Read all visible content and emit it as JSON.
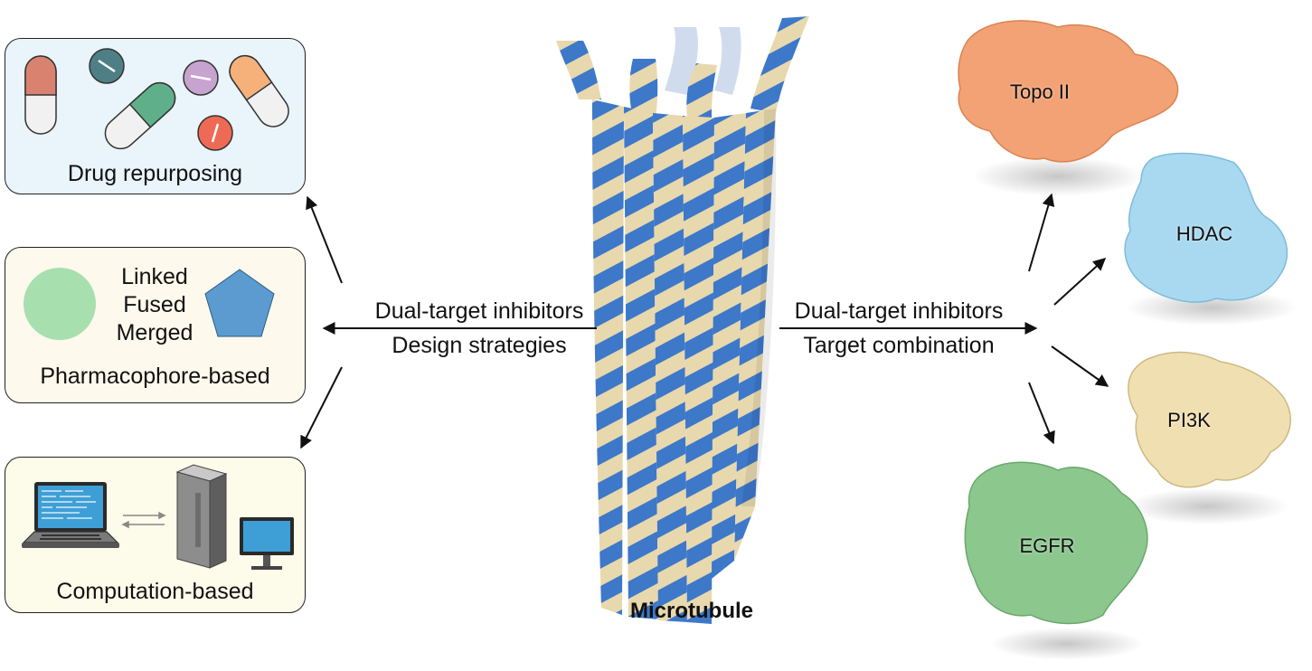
{
  "panels": {
    "drug": {
      "caption": "Drug repurposing"
    },
    "pharmacophore": {
      "caption": "Pharmacophore-based",
      "methods": [
        "Linked",
        "Fused",
        "Merged"
      ]
    },
    "computation": {
      "caption": "Computation-based"
    }
  },
  "center": {
    "left_label_line1": "Dual-target inhibitors",
    "left_label_line2": "Design strategies",
    "right_label_line1": "Dual-target inhibitors",
    "right_label_line2": "Target combination",
    "structure_label": "Microtubule"
  },
  "targets": [
    {
      "name": "Topo II",
      "color": "#f2a274"
    },
    {
      "name": "HDAC",
      "color": "#a9d9f0"
    },
    {
      "name": "PI3K",
      "color": "#f0dfb0"
    },
    {
      "name": "EGFR",
      "color": "#8cc78e"
    }
  ],
  "colors": {
    "tubulin_blue": "#3d78c9",
    "tubulin_tan": "#e8d8ad",
    "pill_red": "#d9826f",
    "pill_green": "#5fb08a",
    "pill_orange": "#f6b07a",
    "circle_green": "#a8dfae",
    "pentagon_blue": "#5b9bd0"
  }
}
